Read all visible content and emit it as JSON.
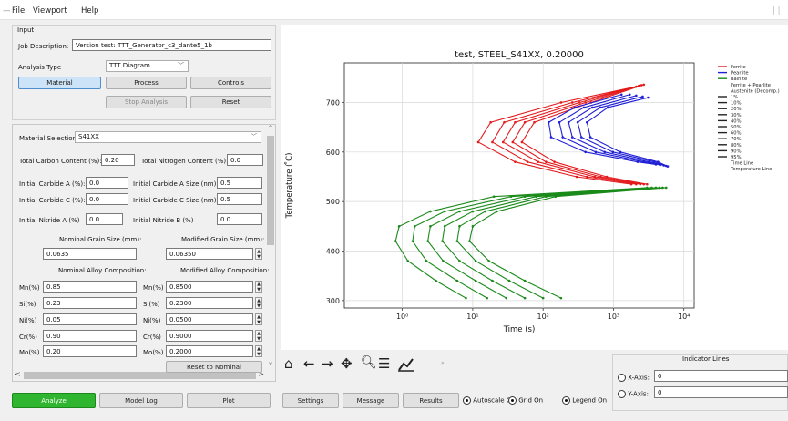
{
  "menu": {
    "file": "File",
    "viewport": "Viewport",
    "help": "Help"
  },
  "input": {
    "title": "Input",
    "job_label": "Job Description:",
    "job_value": "Version test: TTT_Generator_c3_dante5_1b",
    "analysis_label": "Analysis Type",
    "analysis_value": "TTT Diagram",
    "buttons": {
      "material": "Material",
      "process": "Process",
      "controls": "Controls",
      "stop": "Stop Analysis",
      "reset": "Reset"
    }
  },
  "material": {
    "selection_label": "Material Selection",
    "selection_value": "S41XX",
    "carbon_label": "Total Carbon Content (%):",
    "carbon_value": "0.20",
    "nitrogen_label": "Total Nitrogen Content (%):",
    "nitrogen_value": "0.0",
    "carbide_a_label": "Initial Carbide A (%):",
    "carbide_a_value": "0.0",
    "carbide_a_size_label": "Initial Carbide A Size (nm):",
    "carbide_a_size_value": "0.5",
    "carbide_c_label": "Initial Carbide C (%):",
    "carbide_c_value": "0.0",
    "carbide_c_size_label": "Initial Carbide C Size (nm):",
    "carbide_c_size_value": "0.5",
    "nitride_a_label": "Initial Nitride A (%)",
    "nitride_a_value": "0.0",
    "nitride_b_label": "Initial Nitride B (%)",
    "nitride_b_value": "0.0",
    "nominal_grain_label": "Nominal Grain Size (mm):",
    "nominal_grain_value": "0.0635",
    "modified_grain_label": "Modified Grain Size (mm):",
    "modified_grain_value": "0.06350",
    "nominal_alloy_label": "Nominal Alloy Composition:",
    "modified_alloy_label": "Modified Alloy Composition:",
    "alloys": [
      {
        "label": "Mn(%)",
        "nominal": "0.85",
        "modified": "0.8500"
      },
      {
        "label": "Si(%)",
        "nominal": "0.23",
        "modified": "0.2300"
      },
      {
        "label": "Ni(%)",
        "nominal": "0.05",
        "modified": "0.0500"
      },
      {
        "label": "Cr(%)",
        "nominal": "0.90",
        "modified": "0.9000"
      },
      {
        "label": "Mo(%)",
        "nominal": "0.20",
        "modified": "0.2000"
      }
    ],
    "reset_nominal": "Reset to Nominal"
  },
  "bottom_tabs": {
    "analyze": "Analyze",
    "model_log": "Model Log",
    "plot": "Plot",
    "settings": "Settings",
    "message": "Message",
    "results": "Results"
  },
  "toggles": {
    "autoscale": "Autoscale On",
    "grid": "Grid On",
    "legend": "Legend On"
  },
  "indicator": {
    "title": "Indicator Lines",
    "x_label": "X-Axis:",
    "x_value": "0",
    "y_label": "Y-Axis:",
    "y_value": "0"
  },
  "toolbar_icons": [
    "home-icon",
    "back-arrow-icon",
    "forward-arrow-icon",
    "pan-icon",
    "zoom-icon",
    "configure-subplots-icon",
    "edit-axis-icon"
  ],
  "colors": {
    "ferrite": "#e31a1c",
    "pearlite": "#1f1fd6",
    "bainite": "#1a8a1a",
    "analyze": "#2fb52f"
  },
  "chart_data": {
    "type": "line",
    "title": "test, STEEL_S41XX, 0.20000",
    "xlabel": "Time (s)",
    "ylabel": "Temperature ( ̊C)",
    "x_scale": "log",
    "xlim": [
      0.15,
      14000
    ],
    "ylim": [
      285,
      780
    ],
    "xticks": [
      {
        "v": 1,
        "label": "10⁰"
      },
      {
        "v": 10,
        "label": "10¹"
      },
      {
        "v": 100,
        "label": "10²"
      },
      {
        "v": 1000,
        "label": "10³"
      },
      {
        "v": 10000,
        "label": "10⁴"
      }
    ],
    "yticks": [
      300,
      400,
      500,
      600,
      700
    ],
    "grid": true,
    "legend_position": "right",
    "legend": [
      {
        "label": "Ferrite",
        "color": "#e31a1c"
      },
      {
        "label": "Pearlite",
        "color": "#1f1fd6"
      },
      {
        "label": "Bainite",
        "color": "#1a8a1a"
      },
      {
        "label": "Ferrite + Pearlite",
        "color": ""
      },
      {
        "label": "Austenite (Decomp.)",
        "color": ""
      },
      {
        "label": "1%",
        "color": "#222"
      },
      {
        "label": "10%",
        "color": "#222"
      },
      {
        "label": "20%",
        "color": "#222"
      },
      {
        "label": "30%",
        "color": "#222"
      },
      {
        "label": "40%",
        "color": "#222"
      },
      {
        "label": "50%",
        "color": "#222"
      },
      {
        "label": "60%",
        "color": "#222"
      },
      {
        "label": "70%",
        "color": "#222"
      },
      {
        "label": "80%",
        "color": "#222"
      },
      {
        "label": "90%",
        "color": "#222"
      },
      {
        "label": "95%",
        "color": "#222"
      },
      {
        "label": "Time Line",
        "color": ""
      },
      {
        "label": "Temperature Line",
        "color": ""
      }
    ],
    "series": [
      {
        "phase": "Ferrite",
        "color": "#e31a1c",
        "curves": [
          {
            "T": [
              730,
              700,
              660,
              620,
              580,
              550,
              535
            ],
            "t": [
              1800,
              180,
              18,
              12,
              40,
              300,
              1800
            ]
          },
          {
            "T": [
              732,
              700,
              660,
              620,
              580,
              550,
              535
            ],
            "t": [
              2100,
              260,
              28,
              19,
              60,
              420,
              2100
            ]
          },
          {
            "T": [
              734,
              700,
              660,
              620,
              580,
              550,
              535
            ],
            "t": [
              2300,
              330,
              40,
              27,
              85,
              540,
              2400
            ]
          },
          {
            "T": [
              735,
              700,
              660,
              620,
              580,
              550,
              535
            ],
            "t": [
              2500,
              400,
              55,
              37,
              110,
              660,
              2700
            ]
          },
          {
            "T": [
              736,
              700,
              660,
              620,
              580,
              550,
              535
            ],
            "t": [
              2700,
              480,
              75,
              50,
              145,
              800,
              3000
            ]
          }
        ]
      },
      {
        "phase": "Pearlite",
        "color": "#1f1fd6",
        "curves": [
          {
            "T": [
              716,
              690,
              660,
              630,
              600,
              580,
              575
            ],
            "t": [
              1300,
              280,
              120,
              130,
              400,
              2200,
              4000
            ]
          },
          {
            "T": [
              716,
              690,
              660,
              630,
              600,
              580,
              574
            ],
            "t": [
              1700,
              380,
              170,
              190,
              560,
              2700,
              4600
            ]
          },
          {
            "T": [
              714,
              690,
              660,
              630,
              600,
              580,
              573
            ],
            "t": [
              2100,
              500,
              230,
              260,
              750,
              3200,
              5200
            ]
          },
          {
            "T": [
              712,
              690,
              660,
              630,
              600,
              580,
              572
            ],
            "t": [
              2600,
              650,
              310,
              350,
              980,
              3800,
              5600
            ]
          },
          {
            "T": [
              710,
              690,
              660,
              630,
              600,
              580,
              571
            ],
            "t": [
              3100,
              830,
              420,
              470,
              1250,
              4300,
              5900
            ]
          }
        ]
      },
      {
        "phase": "Bainite",
        "color": "#1a8a1a",
        "curves": [
          {
            "T": [
              528,
              510,
              480,
              450,
              420,
              380,
              340,
              305
            ],
            "t": [
              3000,
              20,
              2.5,
              0.9,
              0.8,
              1.2,
              3,
              8
            ]
          },
          {
            "T": [
              528,
              510,
              480,
              450,
              420,
              380,
              340,
              305
            ],
            "t": [
              3500,
              35,
              4,
              1.5,
              1.4,
              2.2,
              6,
              16
            ]
          },
          {
            "T": [
              528,
              510,
              480,
              450,
              420,
              380,
              340,
              305
            ],
            "t": [
              4000,
              55,
              6.5,
              2.5,
              2.3,
              3.8,
              11,
              30
            ]
          },
          {
            "T": [
              528,
              510,
              480,
              450,
              420,
              380,
              340,
              305
            ],
            "t": [
              4500,
              80,
              10,
              4,
              3.7,
              6.5,
              19,
              55
            ]
          },
          {
            "T": [
              528,
              510,
              480,
              450,
              420,
              380,
              340,
              305
            ],
            "t": [
              5000,
              110,
              15,
              6.5,
              6,
              11,
              33,
              100
            ]
          },
          {
            "T": [
              528,
              510,
              480,
              450,
              420,
              380,
              340,
              305
            ],
            "t": [
              5600,
              150,
              22,
              10,
              9,
              17,
              55,
              180
            ]
          }
        ]
      }
    ]
  }
}
